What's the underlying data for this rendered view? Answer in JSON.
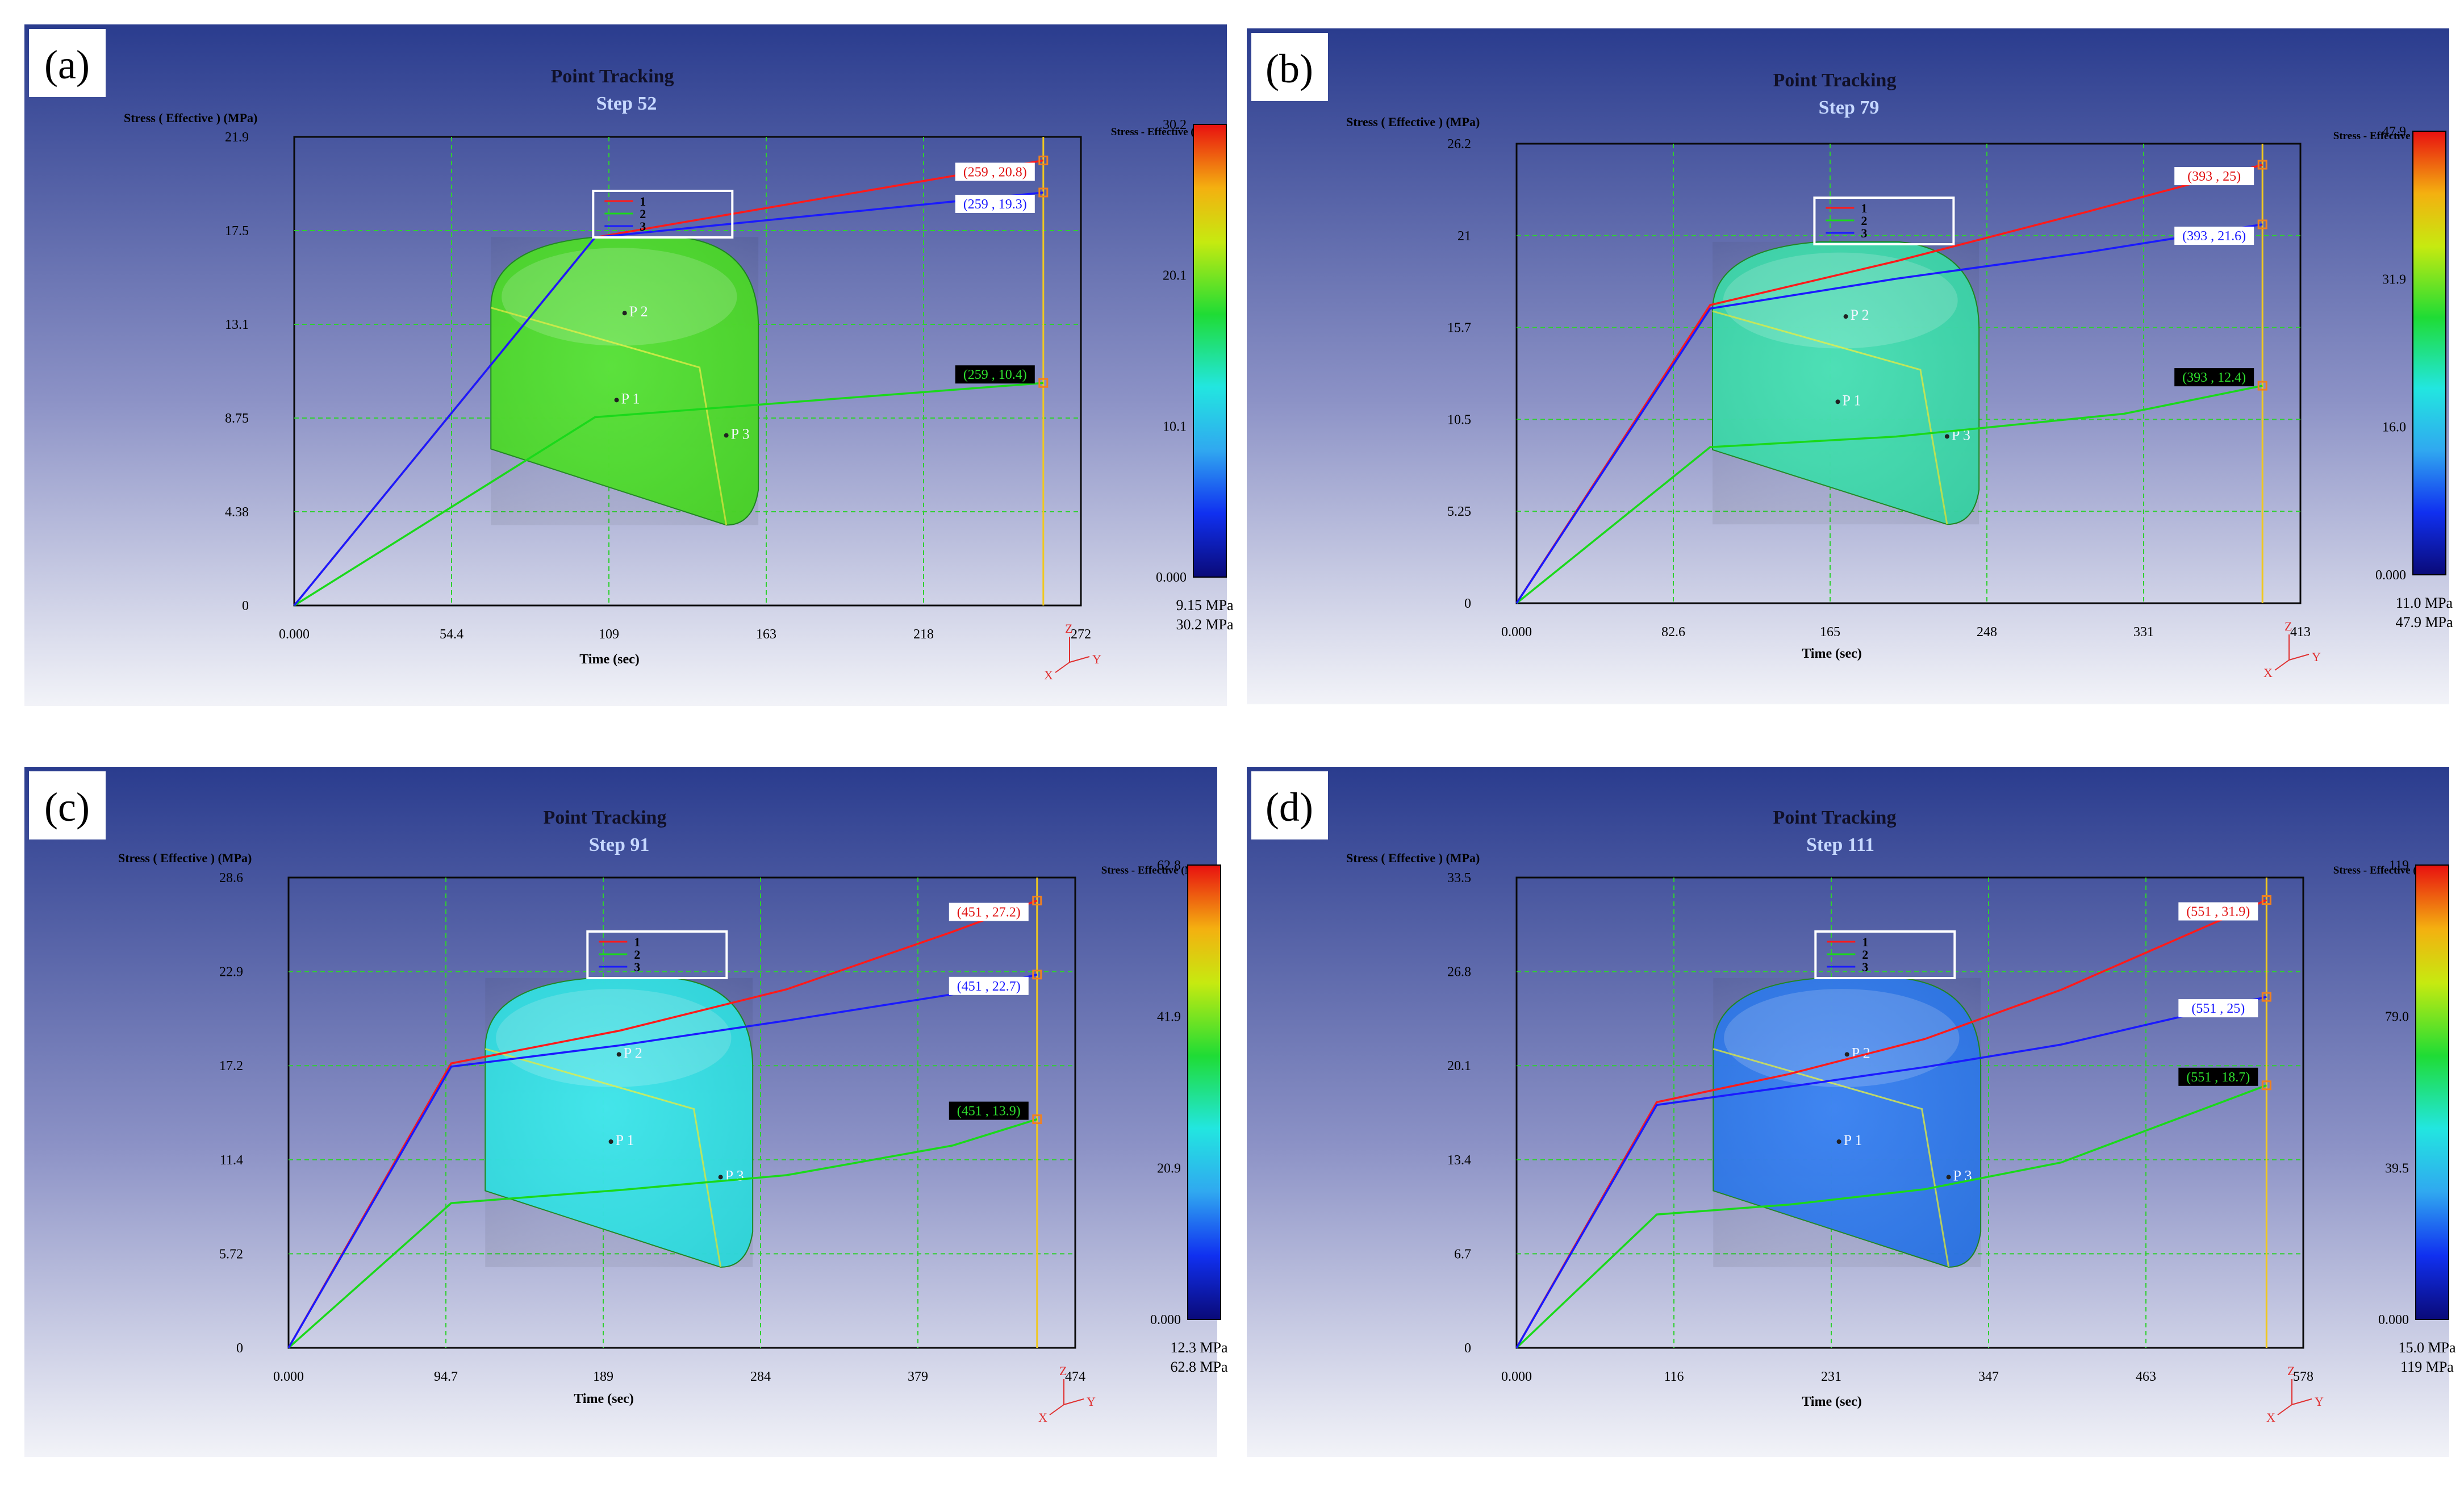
{
  "panels": [
    {
      "label": "(a)",
      "title": "Point Tracking",
      "step_label": "Step 52",
      "ylabel": "Stress ( Effective )  (MPa)",
      "xlabel": "Time (sec)",
      "colorbar": {
        "title": "Stress - Effective (MPa)",
        "ticks": [
          "30.2",
          "20.1",
          "10.1",
          "0.000"
        ],
        "min_label": "9.15 MPa",
        "max_label": "30.2 MPa"
      },
      "part_color": "#4ee22a",
      "point_names": [
        "P 2",
        "P 1",
        "P 3"
      ],
      "axes_triad": {
        "z": "Z",
        "x": "X",
        "y": "Y"
      },
      "chart_data": {
        "type": "line",
        "xticks": [
          "0.000",
          "54.4",
          "109",
          "163",
          "218",
          "272"
        ],
        "yticks": [
          "0",
          "4.38",
          "8.75",
          "13.1",
          "17.5",
          "21.9"
        ],
        "xlim": [
          0,
          272
        ],
        "ylim": [
          0,
          21.9
        ],
        "cursor_x": 259,
        "series": [
          {
            "name": "1",
            "color": "#ff1a1a",
            "x": [
              0,
              104,
              259
            ],
            "y": [
              0,
              17.2,
              20.8
            ]
          },
          {
            "name": "2",
            "color": "#1ad91a",
            "x": [
              0,
              104,
              259
            ],
            "y": [
              0,
              8.8,
              10.4
            ]
          },
          {
            "name": "3",
            "color": "#1a1aff",
            "x": [
              0,
              104,
              259
            ],
            "y": [
              0,
              17.2,
              19.3
            ]
          }
        ],
        "callouts": [
          "(259 , 20.8)",
          "(259 , 10.4)",
          "(259 , 19.3)"
        ]
      }
    },
    {
      "label": "(b)",
      "title": "Point Tracking",
      "step_label": "Step 79",
      "ylabel": "Stress ( Effective )  (MPa)",
      "xlabel": "Time (sec)",
      "colorbar": {
        "title": "Stress - Effective (MPa)",
        "ticks": [
          "47.9",
          "31.9",
          "16.0",
          "0.000"
        ],
        "min_label": "11.0 MPa",
        "max_label": "47.9 MPa"
      },
      "part_color": "#3ee0b0",
      "point_names": [
        "P 2",
        "P 1",
        "P 3"
      ],
      "axes_triad": {
        "z": "Z",
        "x": "X",
        "y": "Y"
      },
      "chart_data": {
        "type": "line",
        "xticks": [
          "0.000",
          "82.6",
          "165",
          "248",
          "331",
          "413"
        ],
        "yticks": [
          "0",
          "5.25",
          "10.5",
          "15.7",
          "21",
          "26.2"
        ],
        "xlim": [
          0,
          413
        ],
        "ylim": [
          0,
          26.2
        ],
        "cursor_x": 393,
        "series": [
          {
            "name": "1",
            "color": "#ff1a1a",
            "x": [
              0,
              102,
              200,
              300,
              393
            ],
            "y": [
              0,
              17.0,
              19.5,
              22.3,
              25.0
            ]
          },
          {
            "name": "2",
            "color": "#1ad91a",
            "x": [
              0,
              102,
              200,
              320,
              393
            ],
            "y": [
              0,
              8.9,
              9.5,
              10.8,
              12.4
            ]
          },
          {
            "name": "3",
            "color": "#1a1aff",
            "x": [
              0,
              102,
              200,
              300,
              393
            ],
            "y": [
              0,
              16.8,
              18.5,
              20.0,
              21.6
            ]
          }
        ],
        "callouts": [
          "(393 , 25)",
          "(393 , 12.4)",
          "(393 , 21.6)"
        ]
      }
    },
    {
      "label": "(c)",
      "title": "Point Tracking",
      "step_label": "Step 91",
      "ylabel": "Stress ( Effective )  (MPa)",
      "xlabel": "Time (sec)",
      "colorbar": {
        "title": "Stress - Effective (MPa)",
        "ticks": [
          "62.8",
          "41.9",
          "20.9",
          "0.000"
        ],
        "min_label": "12.3 MPa",
        "max_label": "62.8 MPa"
      },
      "part_color": "#33e6ea",
      "point_names": [
        "P 2",
        "P 1",
        "P 3"
      ],
      "axes_triad": {
        "z": "Z",
        "x": "X",
        "y": "Y"
      },
      "chart_data": {
        "type": "line",
        "xticks": [
          "0.000",
          "94.7",
          "189",
          "284",
          "379",
          "474"
        ],
        "yticks": [
          "0",
          "5.72",
          "11.4",
          "17.2",
          "22.9",
          "28.6"
        ],
        "xlim": [
          0,
          474
        ],
        "ylim": [
          0,
          28.6
        ],
        "cursor_x": 451,
        "series": [
          {
            "name": "1",
            "color": "#ff1a1a",
            "x": [
              0,
              98,
              200,
              300,
              400,
              451
            ],
            "y": [
              0,
              17.3,
              19.3,
              21.8,
              25.3,
              27.2
            ]
          },
          {
            "name": "2",
            "color": "#1ad91a",
            "x": [
              0,
              98,
              200,
              300,
              400,
              451
            ],
            "y": [
              0,
              8.8,
              9.6,
              10.5,
              12.3,
              13.9
            ]
          },
          {
            "name": "3",
            "color": "#1a1aff",
            "x": [
              0,
              98,
              200,
              300,
              400,
              451
            ],
            "y": [
              0,
              17.1,
              18.4,
              19.9,
              21.5,
              22.7
            ]
          }
        ],
        "callouts": [
          "(451 , 27.2)",
          "(451 , 13.9)",
          "(451 , 22.7)"
        ]
      }
    },
    {
      "label": "(d)",
      "title": "Point Tracking",
      "step_label": "Step 111",
      "ylabel": "Stress ( Effective )  (MPa)",
      "xlabel": "Time (sec)",
      "colorbar": {
        "title": "Stress - Effective (MPa)",
        "ticks": [
          "119",
          "79.0",
          "39.5",
          "0.000"
        ],
        "min_label": "15.0 MPa",
        "max_label": "119 MPa"
      },
      "part_color": "#2f7cf2",
      "point_names": [
        "P 2",
        "P 1",
        "P 3"
      ],
      "axes_triad": {
        "z": "Z",
        "x": "X",
        "y": "Y"
      },
      "chart_data": {
        "type": "line",
        "xticks": [
          "0.000",
          "116",
          "231",
          "347",
          "463",
          "578"
        ],
        "yticks": [
          "0",
          "6.7",
          "13.4",
          "20.1",
          "26.8",
          "33.5"
        ],
        "xlim": [
          0,
          578
        ],
        "ylim": [
          0,
          33.5
        ],
        "cursor_x": 551,
        "series": [
          {
            "name": "1",
            "color": "#ff1a1a",
            "x": [
              0,
              103,
              200,
              300,
              400,
              551
            ],
            "y": [
              0,
              17.5,
              19.5,
              22.0,
              25.5,
              31.9
            ]
          },
          {
            "name": "2",
            "color": "#1ad91a",
            "x": [
              0,
              103,
              200,
              300,
              400,
              551
            ],
            "y": [
              0,
              9.5,
              10.2,
              11.3,
              13.2,
              18.7
            ]
          },
          {
            "name": "3",
            "color": "#1a1aff",
            "x": [
              0,
              103,
              200,
              300,
              400,
              551
            ],
            "y": [
              0,
              17.3,
              18.6,
              20.0,
              21.6,
              25.0
            ]
          }
        ],
        "callouts": [
          "(551 , 31.9)",
          "(551 , 18.7)",
          "(551 , 25)"
        ]
      }
    }
  ]
}
